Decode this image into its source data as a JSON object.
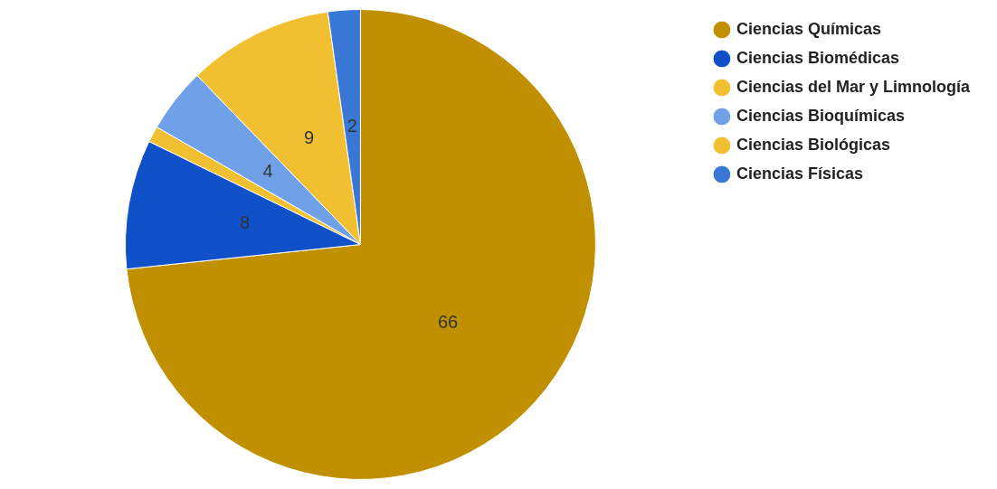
{
  "chart_data": {
    "type": "pie",
    "categories": [
      "Ciencias Químicas",
      "Ciencias Biomédicas",
      "Ciencias del Mar y Limnología",
      "Ciencias Bioquímicas",
      "Ciencias Biológicas",
      "Ciencias Físicas"
    ],
    "values": [
      66,
      8,
      1,
      4,
      9,
      2
    ],
    "value_labels": [
      "66",
      "8",
      null,
      "4",
      "9",
      "2"
    ],
    "colors": [
      "#c09000",
      "#1050c8",
      "#f0c030",
      "#70a0e8",
      "#f0c030",
      "#3a78d8"
    ],
    "legend": "top right"
  }
}
